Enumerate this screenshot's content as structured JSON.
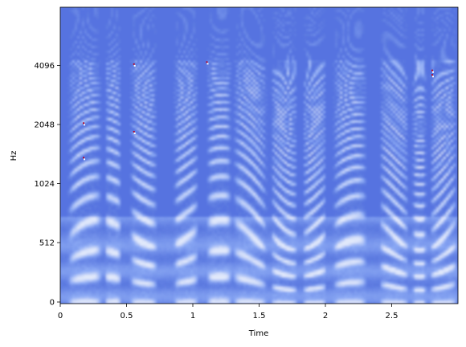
{
  "chart_data": {
    "type": "heatmap",
    "title": "",
    "xlabel": "Time",
    "ylabel": "Hz",
    "xlim": [
      0,
      3.0
    ],
    "y_scale": "log2-like",
    "x_ticks": [
      {
        "value": 0,
        "label": "0"
      },
      {
        "value": 0.5,
        "label": "0.5"
      },
      {
        "value": 1,
        "label": "1"
      },
      {
        "value": 1.5,
        "label": "1.5"
      },
      {
        "value": 2,
        "label": "2"
      },
      {
        "value": 2.5,
        "label": "2.5"
      }
    ],
    "y_ticks": [
      {
        "value": 0,
        "label": "0"
      },
      {
        "value": 512,
        "label": "512"
      },
      {
        "value": 1024,
        "label": "1024"
      },
      {
        "value": 2048,
        "label": "2048"
      },
      {
        "value": 4096,
        "label": "4096"
      }
    ],
    "colormap": "coolwarm",
    "colors": {
      "low": "#3b4cc0",
      "mid": "#dddddd",
      "high": "#b40426",
      "background": "#5673e0"
    },
    "grid": false,
    "legend": "none"
  }
}
